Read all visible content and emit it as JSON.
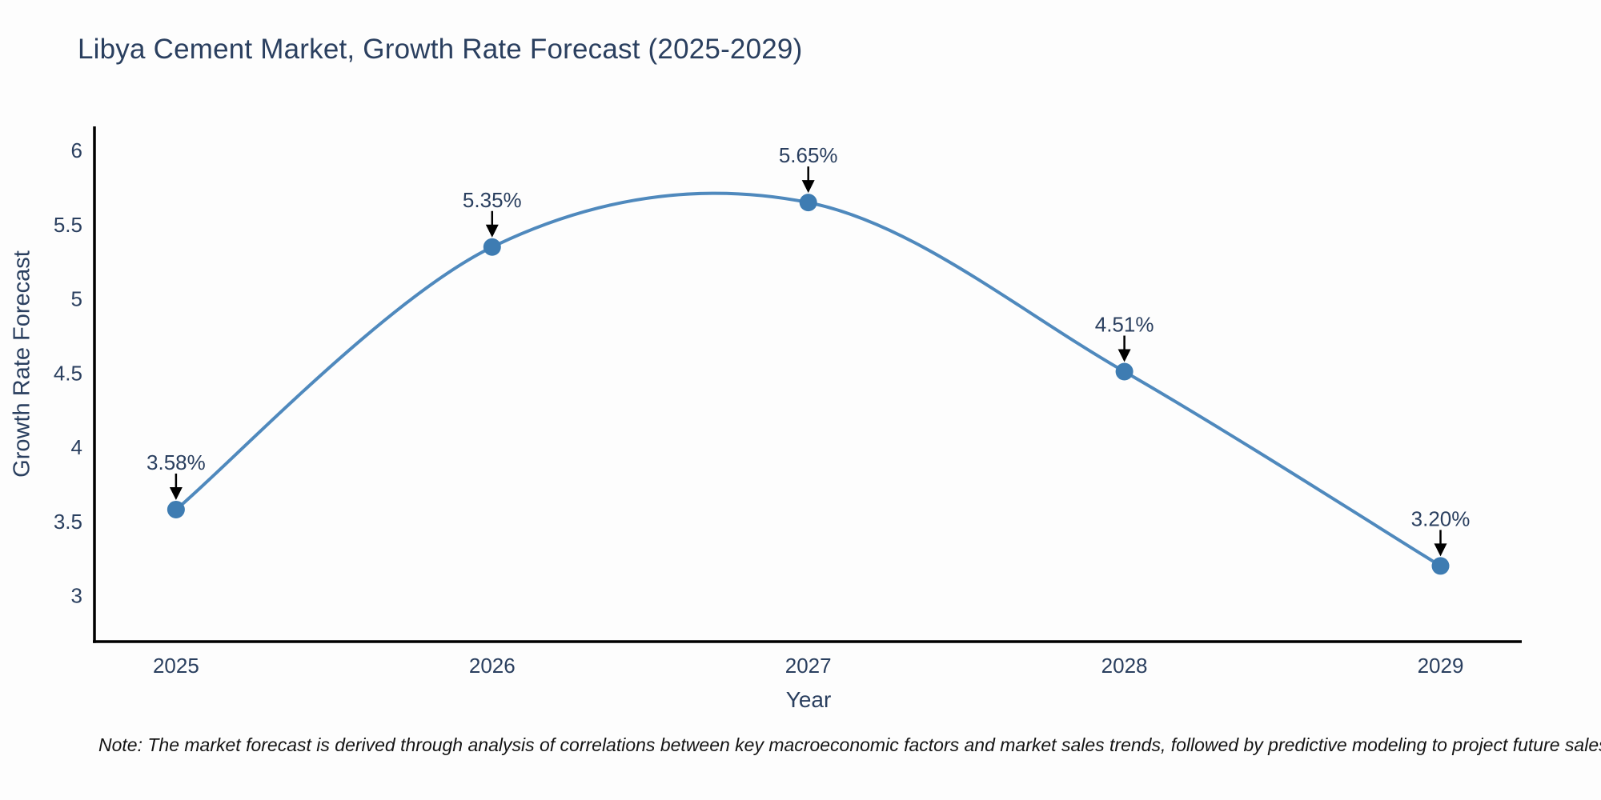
{
  "note": "Note: The market forecast is derived through analysis of correlations between key macroeconomic factors and market sales trends, followed by predictive modeling to project future sales",
  "chart_data": {
    "type": "line",
    "title": "Libya Cement Market, Growth Rate Forecast (2025-2029)",
    "xlabel": "Year",
    "ylabel": "Growth Rate Forecast",
    "x": [
      2025,
      2026,
      2027,
      2028,
      2029
    ],
    "y": [
      3.58,
      5.35,
      5.65,
      4.51,
      3.2
    ],
    "point_labels": [
      "3.58%",
      "5.35%",
      "5.65%",
      "4.51%",
      "3.20%"
    ],
    "xticks": [
      "2025",
      "2026",
      "2027",
      "2028",
      "2029"
    ],
    "yticks": [
      3,
      3.5,
      4,
      4.5,
      5,
      5.5,
      6
    ],
    "xlim": [
      2024.742,
      2029.257
    ],
    "ylim": [
      2.69,
      6.163
    ],
    "grid": false,
    "legend": null,
    "line_shape": "spline",
    "line_color": "#4f89bd",
    "marker_color": "#3e7cb2",
    "arrow_color": "#000000",
    "axis_color": "#000000",
    "text_color": "#2a3f5f"
  }
}
